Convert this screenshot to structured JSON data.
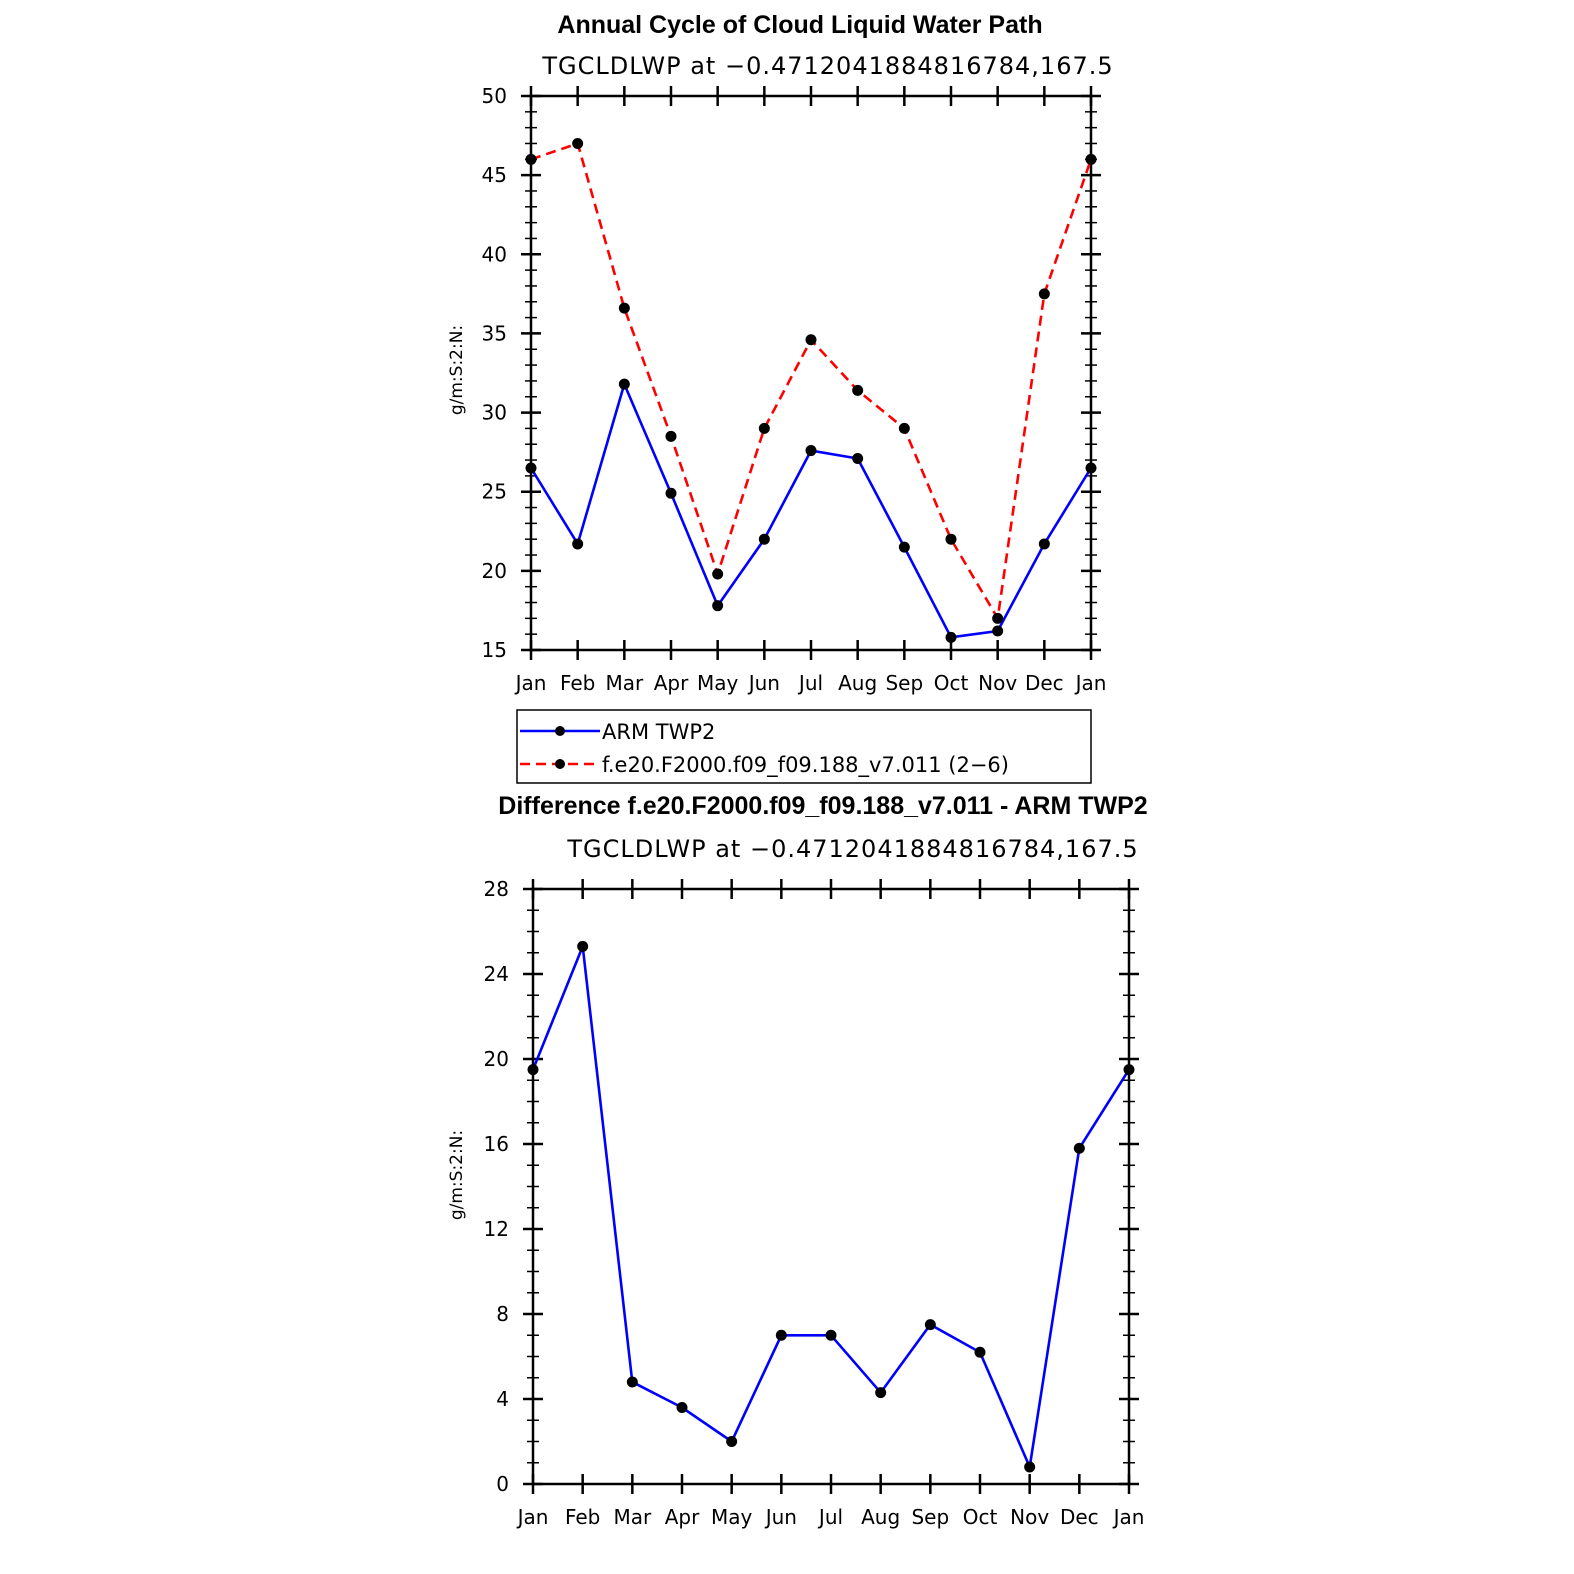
{
  "chart_data": [
    {
      "type": "line",
      "title": "Annual Cycle of Cloud Liquid Water Path",
      "subtitle": "TGCLDLWP at −0.4712041884816784,167.5",
      "xlabel": "",
      "ylabel": "g/m:S:2:N:",
      "categories": [
        "Jan",
        "Feb",
        "Mar",
        "Apr",
        "May",
        "Jun",
        "Jul",
        "Aug",
        "Sep",
        "Oct",
        "Nov",
        "Dec",
        "Jan"
      ],
      "ylim": [
        15,
        50
      ],
      "yticks": [
        15,
        20,
        25,
        30,
        35,
        40,
        45,
        50
      ],
      "series": [
        {
          "name": "ARM TWP2",
          "color": "#0000ff",
          "dash": "solid",
          "values": [
            26.5,
            21.7,
            31.8,
            24.9,
            17.8,
            22.0,
            27.6,
            27.1,
            21.5,
            15.8,
            16.2,
            21.7,
            26.5
          ]
        },
        {
          "name": "f.e20.F2000.f09_f09.188_v7.011 (2−6)",
          "color": "#ff0000",
          "dash": "dashed",
          "values": [
            46.0,
            47.0,
            36.6,
            28.5,
            19.8,
            29.0,
            34.6,
            31.4,
            29.0,
            22.0,
            17.0,
            37.5,
            46.0
          ]
        }
      ],
      "legend": "below"
    },
    {
      "type": "line",
      "title": "Difference f.e20.F2000.f09_f09.188_v7.011 - ARM TWP2",
      "subtitle": "TGCLDLWP at −0.4712041884816784,167.5",
      "xlabel": "",
      "ylabel": "g/m:S:2:N:",
      "categories": [
        "Jan",
        "Feb",
        "Mar",
        "Apr",
        "May",
        "Jun",
        "Jul",
        "Aug",
        "Sep",
        "Oct",
        "Nov",
        "Dec",
        "Jan"
      ],
      "ylim": [
        0,
        28
      ],
      "yticks": [
        0,
        4,
        8,
        12,
        16,
        20,
        24,
        28
      ],
      "series": [
        {
          "color": "#0000ff",
          "dash": "solid",
          "values": [
            19.5,
            25.3,
            4.8,
            3.6,
            2.0,
            7.0,
            7.0,
            4.3,
            7.5,
            6.2,
            0.8,
            15.8,
            19.5
          ]
        }
      ]
    }
  ]
}
